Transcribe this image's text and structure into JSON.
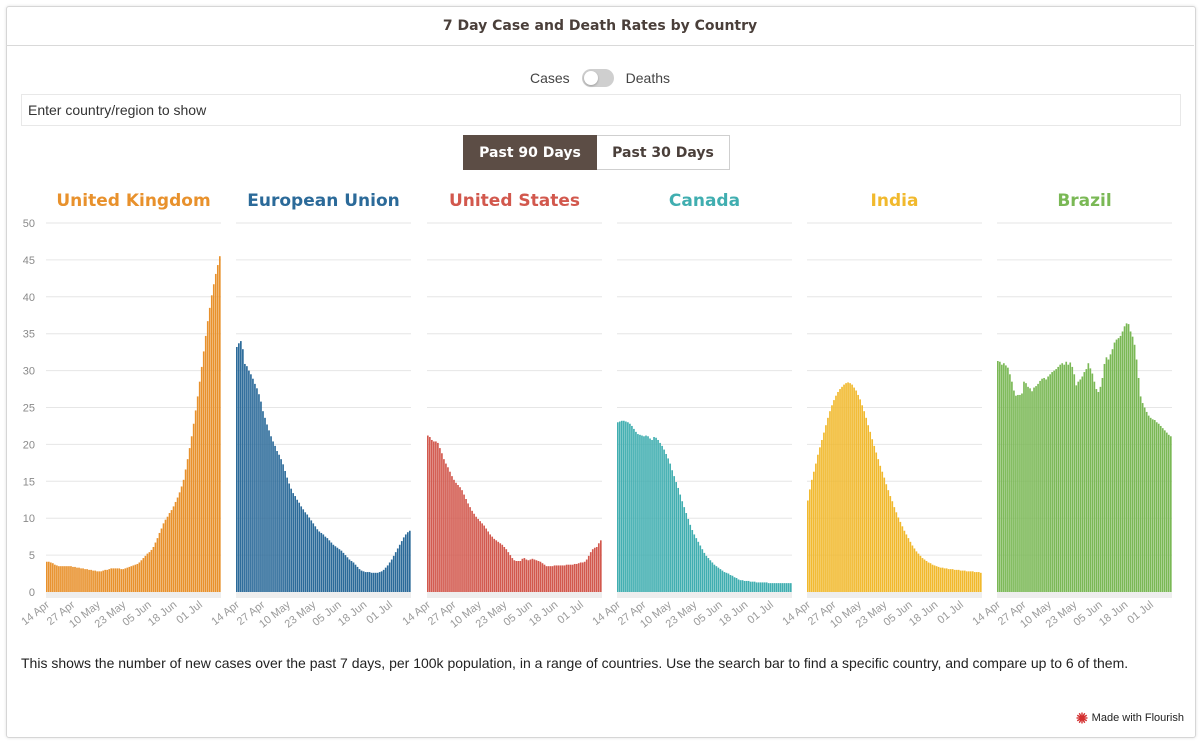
{
  "title": "7 Day Case and Death Rates by Country",
  "toggle": {
    "left_label": "Cases",
    "right_label": "Deaths"
  },
  "search": {
    "placeholder": "Enter country/region to show"
  },
  "range_buttons": {
    "active": "Past 90 Days",
    "inactive": "Past 30 Days"
  },
  "description": "This shows the number of new cases over the past 7 days, per 100k population, in a range of countries. Use the search bar to find a specific country, and compare up to 6 of them.",
  "credit": "Made with Flourish",
  "colors": {
    "United Kingdom": "#e8912c",
    "European Union": "#2b6a99",
    "United States": "#d2584d",
    "Canada": "#40aeb0",
    "India": "#f1b92d",
    "Brazil": "#7ab855",
    "logo": "#d32f2f"
  },
  "chart_data": {
    "type": "bar",
    "ylim": [
      0,
      50
    ],
    "yticks": [
      0,
      5,
      10,
      15,
      20,
      25,
      30,
      35,
      40,
      45,
      50
    ],
    "x_tick_labels": [
      "14 Apr",
      "27 Apr",
      "10 May",
      "23 May",
      "05 Jun",
      "18 Jun",
      "01 Jul"
    ],
    "series": [
      {
        "name": "United Kingdom",
        "values": [
          4.1,
          4.1,
          4.0,
          3.9,
          3.7,
          3.6,
          3.5,
          3.5,
          3.5,
          3.5,
          3.5,
          3.5,
          3.5,
          3.4,
          3.4,
          3.3,
          3.3,
          3.2,
          3.2,
          3.1,
          3.1,
          3.0,
          3.0,
          2.9,
          2.9,
          2.8,
          2.8,
          2.8,
          2.9,
          3.0,
          3.0,
          3.1,
          3.2,
          3.2,
          3.2,
          3.2,
          3.2,
          3.1,
          3.1,
          3.2,
          3.3,
          3.4,
          3.5,
          3.6,
          3.7,
          3.8,
          4.0,
          4.3,
          4.6,
          4.9,
          5.2,
          5.4,
          5.7,
          6.1,
          6.7,
          7.3,
          8.0,
          8.6,
          9.3,
          9.8,
          10.2,
          10.7,
          11.1,
          11.6,
          12.2,
          12.8,
          13.5,
          14.3,
          15.2,
          16.6,
          18.0,
          19.5,
          21.1,
          22.8,
          24.6,
          26.5,
          28.5,
          30.5,
          32.6,
          34.7,
          36.7,
          38.5,
          40.2,
          41.7,
          43.1,
          44.3,
          45.5
        ]
      },
      {
        "name": "European Union",
        "values": [
          33.2,
          33.7,
          34.0,
          32.9,
          30.9,
          30.6,
          30.0,
          29.5,
          28.9,
          28.2,
          27.6,
          26.8,
          25.8,
          24.5,
          23.6,
          22.7,
          21.9,
          21.1,
          20.4,
          19.8,
          19.1,
          18.6,
          18.0,
          17.3,
          16.4,
          15.5,
          14.7,
          14.0,
          13.4,
          13.0,
          12.5,
          12.1,
          11.6,
          11.2,
          10.8,
          10.5,
          10.1,
          9.7,
          9.3,
          8.9,
          8.5,
          8.2,
          8.0,
          7.8,
          7.5,
          7.3,
          7.0,
          6.7,
          6.4,
          6.2,
          6.0,
          5.8,
          5.6,
          5.3,
          5.0,
          4.7,
          4.4,
          4.2,
          4.0,
          3.7,
          3.4,
          3.1,
          2.9,
          2.8,
          2.7,
          2.7,
          2.7,
          2.6,
          2.6,
          2.6,
          2.6,
          2.7,
          2.8,
          3.0,
          3.3,
          3.6,
          4.0,
          4.4,
          4.9,
          5.4,
          5.9,
          6.4,
          6.9,
          7.4,
          7.8,
          8.1,
          8.3
        ]
      },
      {
        "name": "United States",
        "values": [
          21.2,
          21.0,
          20.6,
          20.4,
          20.4,
          20.2,
          19.5,
          18.8,
          18.0,
          17.4,
          16.9,
          16.3,
          15.7,
          15.2,
          14.8,
          14.5,
          14.2,
          13.8,
          13.2,
          12.6,
          12.0,
          11.5,
          11.0,
          10.6,
          10.2,
          9.9,
          9.6,
          9.3,
          9.0,
          8.6,
          8.2,
          7.8,
          7.5,
          7.2,
          7.0,
          6.8,
          6.6,
          6.4,
          6.1,
          5.8,
          5.4,
          5.0,
          4.6,
          4.3,
          4.2,
          4.2,
          4.2,
          4.5,
          4.6,
          4.4,
          4.3,
          4.4,
          4.5,
          4.4,
          4.3,
          4.2,
          4.1,
          3.9,
          3.7,
          3.5,
          3.5,
          3.5,
          3.5,
          3.6,
          3.6,
          3.6,
          3.6,
          3.6,
          3.6,
          3.7,
          3.7,
          3.7,
          3.7,
          3.8,
          3.8,
          3.9,
          4.0,
          4.0,
          4.1,
          4.4,
          4.9,
          5.4,
          5.8,
          6.0,
          6.1,
          6.6,
          7.0
        ]
      },
      {
        "name": "Canada",
        "values": [
          23.0,
          23.1,
          23.2,
          23.2,
          23.1,
          23.0,
          22.8,
          22.5,
          22.1,
          21.7,
          21.4,
          21.3,
          21.2,
          21.1,
          21.2,
          21.1,
          20.8,
          20.6,
          21.0,
          20.9,
          20.6,
          20.2,
          19.8,
          19.3,
          18.7,
          18.1,
          17.4,
          16.5,
          15.7,
          14.9,
          14.1,
          13.2,
          12.3,
          11.5,
          10.7,
          9.9,
          9.1,
          8.4,
          7.8,
          7.3,
          6.8,
          6.3,
          5.8,
          5.3,
          4.9,
          4.6,
          4.3,
          4.0,
          3.7,
          3.5,
          3.3,
          3.1,
          2.9,
          2.7,
          2.6,
          2.5,
          2.3,
          2.2,
          2.0,
          1.9,
          1.7,
          1.6,
          1.6,
          1.5,
          1.5,
          1.5,
          1.4,
          1.4,
          1.4,
          1.3,
          1.3,
          1.3,
          1.3,
          1.3,
          1.3,
          1.2,
          1.2,
          1.2,
          1.2,
          1.2,
          1.2,
          1.2,
          1.2,
          1.2,
          1.2,
          1.2,
          1.2
        ]
      },
      {
        "name": "India",
        "values": [
          12.4,
          13.9,
          15.2,
          16.3,
          17.4,
          18.6,
          19.6,
          20.6,
          21.6,
          22.6,
          23.6,
          24.5,
          25.3,
          26.0,
          26.6,
          27.1,
          27.5,
          27.8,
          28.1,
          28.3,
          28.4,
          28.3,
          28.1,
          27.7,
          27.3,
          26.7,
          26.1,
          25.3,
          24.5,
          23.6,
          22.6,
          21.7,
          20.7,
          19.8,
          18.9,
          18.0,
          17.1,
          16.3,
          15.5,
          14.6,
          13.8,
          13.0,
          12.3,
          11.5,
          10.8,
          10.1,
          9.5,
          8.9,
          8.3,
          7.8,
          7.3,
          6.8,
          6.3,
          5.9,
          5.5,
          5.2,
          4.9,
          4.6,
          4.4,
          4.2,
          4.0,
          3.9,
          3.7,
          3.6,
          3.5,
          3.4,
          3.3,
          3.3,
          3.2,
          3.2,
          3.1,
          3.1,
          3.1,
          3.0,
          3.0,
          3.0,
          2.9,
          2.9,
          2.9,
          2.8,
          2.8,
          2.8,
          2.8,
          2.7,
          2.7,
          2.7,
          2.6
        ]
      },
      {
        "name": "Brazil",
        "values": [
          31.3,
          31.2,
          30.8,
          31.0,
          30.7,
          30.4,
          29.5,
          28.5,
          27.3,
          26.6,
          26.7,
          26.7,
          26.9,
          28.5,
          28.3,
          27.8,
          27.6,
          27.2,
          27.7,
          27.9,
          28.2,
          28.6,
          28.9,
          29.0,
          28.8,
          29.2,
          29.5,
          29.8,
          30.0,
          30.2,
          30.5,
          30.8,
          31.0,
          30.8,
          31.2,
          30.8,
          31.1,
          30.5,
          29.5,
          28.0,
          28.5,
          28.8,
          29.2,
          29.8,
          30.2,
          31.0,
          30.3,
          29.6,
          28.5,
          27.5,
          27.1,
          27.8,
          29.0,
          30.9,
          31.8,
          31.5,
          32.2,
          32.9,
          33.8,
          34.2,
          34.4,
          34.7,
          35.3,
          36.0,
          36.4,
          36.3,
          35.3,
          34.6,
          33.5,
          31.5,
          29.0,
          26.5,
          25.6,
          25.0,
          24.4,
          23.9,
          23.6,
          23.4,
          23.3,
          23.0,
          22.8,
          22.5,
          22.2,
          21.9,
          21.6,
          21.3,
          21.1
        ]
      }
    ]
  }
}
